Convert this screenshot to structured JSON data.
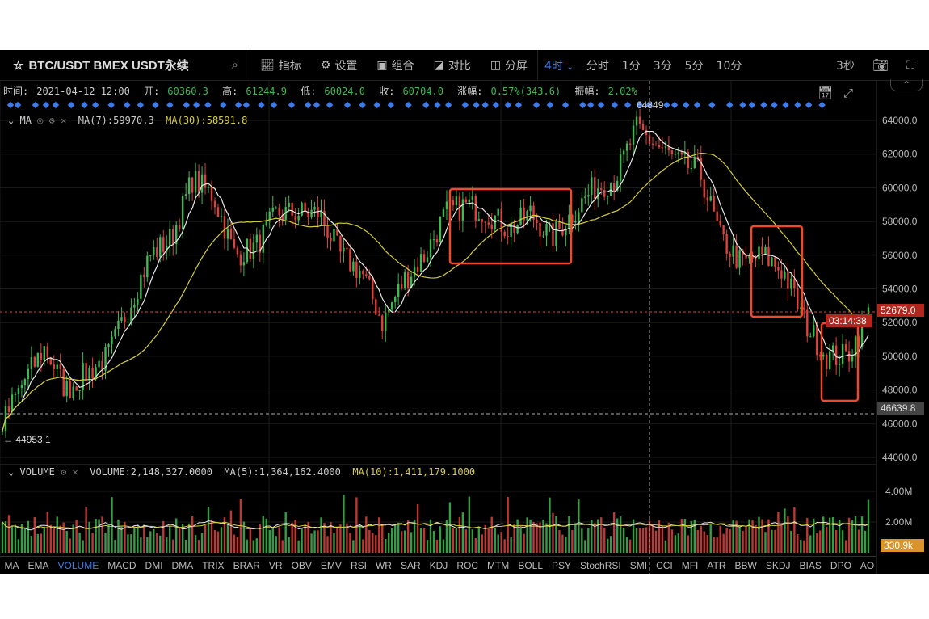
{
  "header": {
    "symbol": "BTC/USDT BMEX USDT永续",
    "tools": [
      {
        "label": "指标",
        "icon": "indicator-icon"
      },
      {
        "label": "设置",
        "icon": "gear-icon"
      },
      {
        "label": "组合",
        "icon": "layout-icon"
      },
      {
        "label": "对比",
        "icon": "compare-icon"
      },
      {
        "label": "分屏",
        "icon": "split-screen-icon"
      }
    ],
    "intervals": [
      "4时",
      "分时",
      "1分",
      "3分",
      "5分",
      "10分"
    ],
    "active_interval": "4时",
    "refresh": "3秒"
  },
  "ohlc": {
    "time_label": "时间:",
    "time": "2021-04-12 12:00",
    "open_label": "开:",
    "open": "60360.3",
    "high_label": "高:",
    "high": "61244.9",
    "low_label": "低:",
    "low": "60024.0",
    "close_label": "收:",
    "close": "60704.0",
    "change_label": "涨幅:",
    "change": "0.57%(343.6)",
    "amp_label": "振幅:",
    "amp": "2.02%"
  },
  "ma": {
    "name": "MA",
    "ma7": "MA(7):59970.3",
    "ma30": "MA(30):58591.8"
  },
  "volume": {
    "name": "VOLUME",
    "value": "VOLUME:2,148,327.0000",
    "ma5": "MA(5):1,364,162.4000",
    "ma10": "MA(10):1,411,179.1000"
  },
  "price_axis": {
    "ticks": [
      "64000.0",
      "62000.0",
      "60000.0",
      "58000.0",
      "56000.0",
      "54000.0",
      "52000.0",
      "50000.0",
      "48000.0",
      "46000.0",
      "44000.0"
    ],
    "last_price": "52679.0",
    "countdown": "03:14:38",
    "crosshair_price": "46639.8",
    "high_mark": "64849",
    "low_mark": "44953.1"
  },
  "volume_axis": {
    "ticks": [
      "4.00M",
      "2.00M"
    ],
    "current": "330.9k"
  },
  "indicator_tabs": [
    "MA",
    "EMA",
    "VOLUME",
    "MACD",
    "DMI",
    "DMA",
    "TRIX",
    "BRAR",
    "VR",
    "OBV",
    "EMV",
    "RSI",
    "WR",
    "SAR",
    "KDJ",
    "ROC",
    "MTM",
    "BOLL",
    "PSY",
    "StochRSI",
    "SMI",
    "CCI",
    "MFI",
    "ATR",
    "BBW",
    "SKDJ",
    "BIAS",
    "DPO",
    "AO"
  ],
  "active_tab": "VOLUME",
  "colors": {
    "up": "#3fb950",
    "down": "#e0413a",
    "accent": "#3d7bea",
    "ma7": "#e8e8e8",
    "ma30": "#d6cd3c",
    "annotation": "#f04a2c",
    "badge": "#d9942c"
  },
  "chart_data": {
    "type": "candlestick",
    "price_path": [
      46000,
      48500,
      50500,
      48000,
      49000,
      50000,
      53000,
      56000,
      57000,
      60500,
      59500,
      56000,
      56500,
      58500,
      58500,
      58500,
      56000,
      55000,
      52000,
      54500,
      56000,
      58500,
      59000,
      58500,
      57500,
      58500,
      57000,
      58500,
      60000,
      60500,
      63500,
      62500,
      61500,
      61000,
      57000,
      55500,
      56000,
      55000,
      52000,
      50000,
      50000,
      52500
    ],
    "ylim": [
      44000,
      64000
    ]
  }
}
